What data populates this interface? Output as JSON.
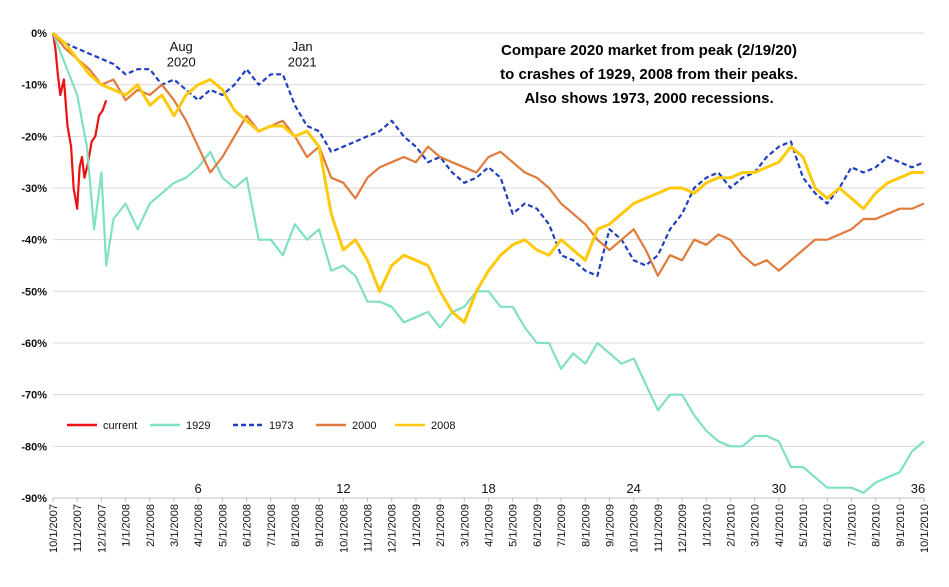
{
  "chart_data": {
    "type": "line",
    "title_lines": [
      "Compare 2020 market from peak (2/19/20)",
      "to crashes of 1929, 2008 from their peaks.",
      "Also shows 1973, 2000 recessions."
    ],
    "xlabel": "",
    "ylabel": "",
    "ylim": [
      -90,
      0
    ],
    "yticks": [
      {
        "v": 0,
        "label": "0%"
      },
      {
        "v": -10,
        "label": "-10%"
      },
      {
        "v": -20,
        "label": "-20%"
      },
      {
        "v": -30,
        "label": "-30%"
      },
      {
        "v": -40,
        "label": "-40%"
      },
      {
        "v": -50,
        "label": "-50%"
      },
      {
        "v": -60,
        "label": "-60%"
      },
      {
        "v": -70,
        "label": "-70%"
      },
      {
        "v": -80,
        "label": "-80%"
      },
      {
        "v": -90,
        "label": "-90%"
      }
    ],
    "xlim": [
      0,
      36
    ],
    "xticks": [
      "10/1/2007",
      "11/1/2007",
      "12/1/2007",
      "1/1/2008",
      "2/1/2008",
      "3/1/2008",
      "4/1/2008",
      "5/1/2008",
      "6/1/2008",
      "7/1/2008",
      "8/1/2008",
      "9/1/2008",
      "10/1/2008",
      "11/1/2008",
      "12/1/2008",
      "1/1/2009",
      "2/1/2009",
      "3/1/2009",
      "4/1/2009",
      "5/1/2009",
      "6/1/2009",
      "7/1/2009",
      "8/1/2009",
      "9/1/2009",
      "10/1/2009",
      "11/1/2009",
      "12/1/2009",
      "1/1/2010",
      "2/1/2010",
      "3/1/2010",
      "4/1/2010",
      "5/1/2010",
      "6/1/2010",
      "7/1/2010",
      "8/1/2010",
      "9/1/2010",
      "10/1/2010"
    ],
    "grid": "horizontal",
    "legend_position": "lower-left",
    "month_markers": [
      {
        "x": 6,
        "label": "6"
      },
      {
        "x": 12,
        "label": "12"
      },
      {
        "x": 18,
        "label": "18"
      },
      {
        "x": 24,
        "label": "24"
      },
      {
        "x": 30,
        "label": "30"
      },
      {
        "x": 36,
        "label": "36"
      }
    ],
    "annotations": [
      {
        "x": 5.3,
        "y": -3.5,
        "label": "Aug"
      },
      {
        "x": 5.3,
        "y": -6.5,
        "label": "2020"
      },
      {
        "x": 10.3,
        "y": -3.5,
        "label": "Jan"
      },
      {
        "x": 10.3,
        "y": -6.5,
        "label": "2021"
      }
    ],
    "series": [
      {
        "name": "current",
        "color": "#ee1111",
        "dash": false,
        "x": [
          0,
          0.1,
          0.2,
          0.3,
          0.45,
          0.6,
          0.75,
          0.85,
          1.0,
          1.1,
          1.2,
          1.3,
          1.45,
          1.6,
          1.75,
          1.9,
          2.05,
          2.2
        ],
        "y": [
          0,
          -3,
          -8,
          -12,
          -9,
          -18,
          -22,
          -30,
          -34,
          -26,
          -24,
          -28,
          -25,
          -21,
          -20,
          -16,
          -15,
          -13
        ]
      },
      {
        "name": "1929",
        "color": "#7fe0c4",
        "dash": false,
        "x": [
          0,
          0.5,
          1.0,
          1.4,
          1.7,
          2.0,
          2.2,
          2.5,
          3.0,
          3.5,
          4.0,
          4.5,
          5.0,
          5.5,
          6.0,
          6.5,
          7.0,
          7.5,
          8.0,
          8.5,
          9.0,
          9.5,
          10.0,
          10.5,
          11.0,
          11.5,
          12.0,
          12.5,
          13.0,
          13.5,
          14.0,
          14.5,
          15.0,
          15.5,
          16.0,
          16.5,
          17.0,
          17.5,
          18.0,
          18.5,
          19.0,
          19.5,
          20.0,
          20.5,
          21.0,
          21.5,
          22.0,
          22.5,
          23.0,
          23.5,
          24.0,
          24.5,
          25.0,
          25.5,
          26.0,
          26.5,
          27.0,
          27.5,
          28.0,
          28.5,
          29.0,
          29.5,
          30.0,
          30.5,
          31.0,
          31.5,
          32.0,
          32.5,
          33.0,
          33.5,
          34.0,
          34.5,
          35.0,
          35.5,
          36.0
        ],
        "y": [
          0,
          -6,
          -12,
          -22,
          -38,
          -27,
          -45,
          -36,
          -33,
          -38,
          -33,
          -31,
          -29,
          -28,
          -26,
          -23,
          -28,
          -30,
          -28,
          -40,
          -40,
          -43,
          -37,
          -40,
          -38,
          -46,
          -45,
          -47,
          -52,
          -52,
          -53,
          -56,
          -55,
          -54,
          -57,
          -54,
          -53,
          -50,
          -50,
          -53,
          -53,
          -57,
          -60,
          -60,
          -65,
          -62,
          -64,
          -60,
          -62,
          -64,
          -63,
          -68,
          -73,
          -70,
          -70,
          -74,
          -77,
          -79,
          -80,
          -80,
          -78,
          -78,
          -79,
          -84,
          -84,
          -86,
          -88,
          -88,
          -88,
          -89,
          -87,
          -86,
          -85,
          -81,
          -79
        ]
      },
      {
        "name": "1973",
        "color": "#1f3fbf",
        "dash": true,
        "x": [
          0,
          0.5,
          1.0,
          1.5,
          2.0,
          2.5,
          3.0,
          3.5,
          4.0,
          4.5,
          5.0,
          5.5,
          6.0,
          6.5,
          7.0,
          7.5,
          8.0,
          8.5,
          9.0,
          9.5,
          10.0,
          10.5,
          11.0,
          11.5,
          12.0,
          12.5,
          13.0,
          13.5,
          14.0,
          14.5,
          15.0,
          15.5,
          16.0,
          16.5,
          17.0,
          17.5,
          18.0,
          18.5,
          19.0,
          19.5,
          20.0,
          20.5,
          21.0,
          21.5,
          22.0,
          22.5,
          23.0,
          23.5,
          24.0,
          24.5,
          25.0,
          25.5,
          26.0,
          26.5,
          27.0,
          27.5,
          28.0,
          28.5,
          29.0,
          29.5,
          30.0,
          30.5,
          31.0,
          31.5,
          32.0,
          32.5,
          33.0,
          33.5,
          34.0,
          34.5,
          35.0,
          35.5,
          36.0
        ],
        "y": [
          0,
          -2,
          -3,
          -4,
          -5,
          -6,
          -8,
          -7,
          -7,
          -10,
          -9,
          -11,
          -13,
          -11,
          -12,
          -10,
          -7,
          -10,
          -8,
          -8,
          -14,
          -18,
          -19,
          -23,
          -22,
          -21,
          -20,
          -19,
          -17,
          -20,
          -22,
          -25,
          -24,
          -27,
          -29,
          -28,
          -26,
          -28,
          -35,
          -33,
          -34,
          -37,
          -43,
          -44,
          -46,
          -47,
          -38,
          -40,
          -44,
          -45,
          -43,
          -38,
          -35,
          -30,
          -28,
          -27,
          -30,
          -28,
          -27,
          -24,
          -22,
          -21,
          -28,
          -31,
          -33,
          -30,
          -26,
          -27,
          -26,
          -24,
          -25,
          -26,
          -25
        ]
      },
      {
        "name": "2000",
        "color": "#e07b3b",
        "dash": false,
        "x": [
          0,
          0.5,
          1.0,
          1.5,
          2.0,
          2.5,
          3.0,
          3.5,
          4.0,
          4.5,
          5.0,
          5.5,
          6.0,
          6.5,
          7.0,
          7.5,
          8.0,
          8.5,
          9.0,
          9.5,
          10.0,
          10.5,
          11.0,
          11.5,
          12.0,
          12.5,
          13.0,
          13.5,
          14.0,
          14.5,
          15.0,
          15.5,
          16.0,
          16.5,
          17.0,
          17.5,
          18.0,
          18.5,
          19.0,
          19.5,
          20.0,
          20.5,
          21.0,
          21.5,
          22.0,
          22.5,
          23.0,
          23.5,
          24.0,
          24.5,
          25.0,
          25.5,
          26.0,
          26.5,
          27.0,
          27.5,
          28.0,
          28.5,
          29.0,
          29.5,
          30.0,
          30.5,
          31.0,
          31.5,
          32.0,
          32.5,
          33.0,
          33.5,
          34.0,
          34.5,
          35.0,
          35.5,
          36.0
        ],
        "y": [
          0,
          -3,
          -5,
          -7,
          -10,
          -9,
          -13,
          -11,
          -12,
          -10,
          -13,
          -17,
          -22,
          -27,
          -24,
          -20,
          -16,
          -19,
          -18,
          -17,
          -20,
          -24,
          -22,
          -28,
          -29,
          -32,
          -28,
          -26,
          -25,
          -24,
          -25,
          -22,
          -24,
          -25,
          -26,
          -27,
          -24,
          -23,
          -25,
          -27,
          -28,
          -30,
          -33,
          -35,
          -37,
          -40,
          -42,
          -40,
          -38,
          -42,
          -47,
          -43,
          -44,
          -40,
          -41,
          -39,
          -40,
          -43,
          -45,
          -44,
          -46,
          -44,
          -42,
          -40,
          -40,
          -39,
          -38,
          -36,
          -36,
          -35,
          -34,
          -34,
          -33
        ]
      },
      {
        "name": "2008",
        "color": "#ffc90e",
        "dash": false,
        "x": [
          0,
          0.5,
          1.0,
          1.5,
          2.0,
          2.5,
          3.0,
          3.5,
          4.0,
          4.5,
          5.0,
          5.5,
          6.0,
          6.5,
          7.0,
          7.5,
          8.0,
          8.5,
          9.0,
          9.5,
          10.0,
          10.5,
          11.0,
          11.5,
          12.0,
          12.5,
          13.0,
          13.5,
          14.0,
          14.5,
          15.0,
          15.5,
          16.0,
          16.5,
          17.0,
          17.5,
          18.0,
          18.5,
          19.0,
          19.5,
          20.0,
          20.5,
          21.0,
          21.5,
          22.0,
          22.5,
          23.0,
          23.5,
          24.0,
          24.5,
          25.0,
          25.5,
          26.0,
          26.5,
          27.0,
          27.5,
          28.0,
          28.5,
          29.0,
          29.5,
          30.0,
          30.5,
          31.0,
          31.5,
          32.0,
          32.5,
          33.0,
          33.5,
          34.0,
          34.5,
          35.0,
          35.5,
          36.0
        ],
        "y": [
          0,
          -2,
          -5,
          -8,
          -10,
          -11,
          -12,
          -10,
          -14,
          -12,
          -16,
          -12,
          -10,
          -9,
          -11,
          -15,
          -17,
          -19,
          -18,
          -18,
          -20,
          -19,
          -22,
          -35,
          -42,
          -40,
          -44,
          -50,
          -45,
          -43,
          -44,
          -45,
          -50,
          -54,
          -56,
          -50,
          -46,
          -43,
          -41,
          -40,
          -42,
          -43,
          -40,
          -42,
          -44,
          -38,
          -37,
          -35,
          -33,
          -32,
          -31,
          -30,
          -30,
          -31,
          -29,
          -28,
          -28,
          -27,
          -27,
          -26,
          -25,
          -22,
          -24,
          -30,
          -32,
          -30,
          -32,
          -34,
          -31,
          -29,
          -28,
          -27,
          -27
        ]
      }
    ]
  }
}
